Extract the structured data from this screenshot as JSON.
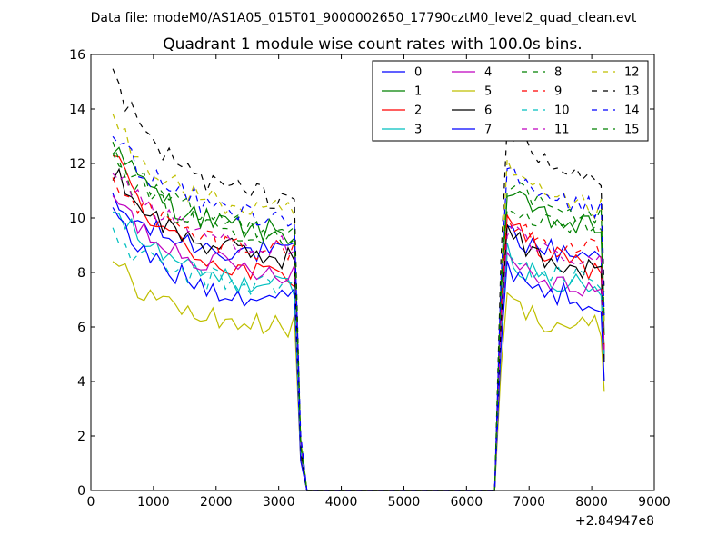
{
  "suptitle": "Data file: modeM0/AS1A05_015T01_9000002650_17790cztM0_level2_quad_clean.evt",
  "chart_data": {
    "type": "line",
    "title": "Quadrant 1 module wise count rates with 100.0s bins.",
    "xlabel": "",
    "ylabel": "",
    "xlim": [
      0,
      9000
    ],
    "ylim": [
      0,
      16
    ],
    "x_ticks": [
      0,
      1000,
      2000,
      3000,
      4000,
      5000,
      6000,
      7000,
      8000,
      9000
    ],
    "y_ticks": [
      0,
      2,
      4,
      6,
      8,
      10,
      12,
      14,
      16
    ],
    "x_offset_label": "+2.84947e8",
    "grid": false,
    "legend_position": "top-right",
    "series": [
      {
        "name": "0",
        "color": "#0000ff",
        "dash": "solid",
        "start": 10.5,
        "plateau1": 8.6,
        "plateau2": 8.6
      },
      {
        "name": "1",
        "color": "#008000",
        "dash": "solid",
        "start": 12.7,
        "plateau1": 9.3,
        "plateau2": 9.5
      },
      {
        "name": "2",
        "color": "#ff0000",
        "dash": "solid",
        "start": 12.4,
        "plateau1": 7.6,
        "plateau2": 8.0
      },
      {
        "name": "3",
        "color": "#00bfbf",
        "dash": "solid",
        "start": 10.5,
        "plateau1": 7.3,
        "plateau2": 7.3
      },
      {
        "name": "4",
        "color": "#bf00bf",
        "dash": "solid",
        "start": 10.8,
        "plateau1": 7.9,
        "plateau2": 7.4
      },
      {
        "name": "5",
        "color": "#bfbf00",
        "dash": "solid",
        "start": 8.4,
        "plateau1": 5.9,
        "plateau2": 5.9
      },
      {
        "name": "6",
        "color": "#000000",
        "dash": "solid",
        "start": 11.8,
        "plateau1": 8.4,
        "plateau2": 8.0
      },
      {
        "name": "7",
        "color": "#0000ff",
        "dash": "solid",
        "start": 10.1,
        "plateau1": 6.9,
        "plateau2": 6.9
      },
      {
        "name": "8",
        "color": "#008000",
        "dash": "dashed",
        "start": 12.0,
        "plateau1": 9.3,
        "plateau2": 9.5
      },
      {
        "name": "9",
        "color": "#ff0000",
        "dash": "dashed",
        "start": 11.6,
        "plateau1": 8.7,
        "plateau2": 8.7
      },
      {
        "name": "10",
        "color": "#00bfbf",
        "dash": "dashed",
        "start": 9.3,
        "plateau1": 7.4,
        "plateau2": 7.7
      },
      {
        "name": "11",
        "color": "#bf00bf",
        "dash": "dashed",
        "start": 11.9,
        "plateau1": 8.8,
        "plateau2": 8.2
      },
      {
        "name": "12",
        "color": "#bfbf00",
        "dash": "dashed",
        "start": 13.7,
        "plateau1": 10.0,
        "plateau2": 10.2
      },
      {
        "name": "13",
        "color": "#000000",
        "dash": "dashed",
        "start": 15.1,
        "plateau1": 10.5,
        "plateau2": 11.3
      },
      {
        "name": "14",
        "color": "#0000ff",
        "dash": "dashed",
        "start": 13.1,
        "plateau1": 9.9,
        "plateau2": 10.3
      },
      {
        "name": "15",
        "color": "#008000",
        "dash": "dashed",
        "start": 12.5,
        "plateau1": 9.5,
        "plateau2": 10.0
      }
    ],
    "segments": {
      "first_start": 350,
      "first_end": 3250,
      "drop_end": 3450,
      "zero_end": 6450,
      "second_start": 6550,
      "second_end": 8150,
      "step": 100
    }
  }
}
